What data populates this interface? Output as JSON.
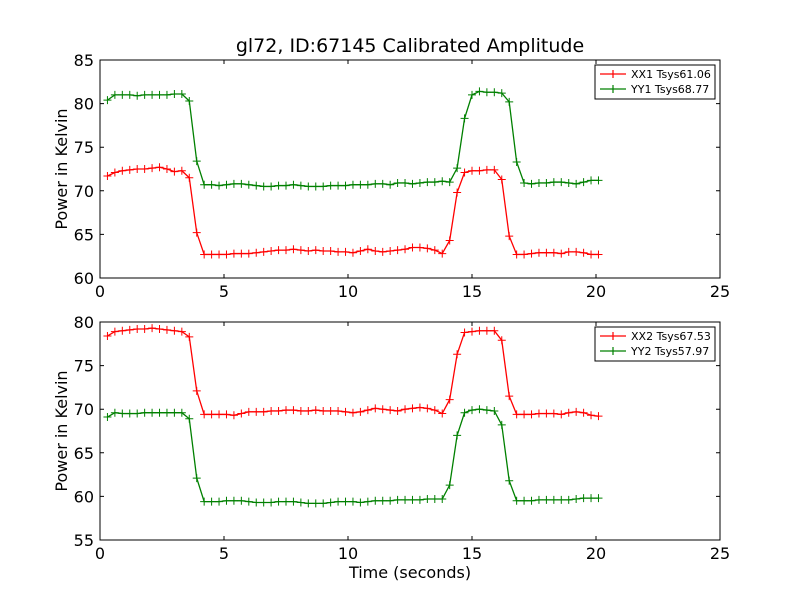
{
  "chart_data": [
    {
      "type": "line",
      "title": "gl72, ID:67145 Calibrated Amplitude",
      "xlabel": "",
      "ylabel": "Power in Kelvin",
      "xlim": [
        0,
        25
      ],
      "ylim": [
        60,
        85
      ],
      "xticks": [
        0,
        5,
        10,
        15,
        20,
        25
      ],
      "yticks": [
        60,
        65,
        70,
        75,
        80,
        85
      ],
      "grid": false,
      "legend_position": "top-right",
      "x": [
        0.3,
        0.6,
        0.9,
        1.2,
        1.5,
        1.8,
        2.1,
        2.4,
        2.7,
        3.0,
        3.3,
        3.6,
        3.9,
        4.2,
        4.5,
        4.8,
        5.1,
        5.4,
        5.7,
        6.0,
        6.3,
        6.6,
        6.9,
        7.2,
        7.5,
        7.8,
        8.1,
        8.4,
        8.7,
        9.0,
        9.3,
        9.6,
        9.9,
        10.2,
        10.5,
        10.8,
        11.1,
        11.4,
        11.7,
        12.0,
        12.3,
        12.6,
        12.9,
        13.2,
        13.5,
        13.8,
        14.1,
        14.4,
        14.7,
        15.0,
        15.3,
        15.6,
        15.9,
        16.2,
        16.5,
        16.8,
        17.1,
        17.4,
        17.7,
        18.0,
        18.3,
        18.6,
        18.9,
        19.2,
        19.5,
        19.8,
        20.1
      ],
      "series": [
        {
          "name": "XX1 Tsys61.06",
          "color": "#ff0000",
          "values": [
            71.7,
            72.1,
            72.3,
            72.4,
            72.5,
            72.5,
            72.6,
            72.7,
            72.5,
            72.2,
            72.3,
            71.5,
            65.2,
            62.7,
            62.7,
            62.7,
            62.7,
            62.8,
            62.8,
            62.8,
            62.9,
            63.0,
            63.1,
            63.2,
            63.2,
            63.3,
            63.2,
            63.1,
            63.2,
            63.1,
            63.1,
            63.0,
            63.0,
            62.9,
            63.1,
            63.3,
            63.1,
            63.0,
            63.1,
            63.2,
            63.3,
            63.5,
            63.5,
            63.4,
            63.2,
            62.8,
            64.3,
            69.8,
            72.1,
            72.3,
            72.3,
            72.4,
            72.4,
            71.3,
            64.8,
            62.7,
            62.7,
            62.8,
            62.9,
            62.9,
            62.9,
            62.8,
            63.0,
            63.0,
            62.9,
            62.7,
            62.7
          ]
        },
        {
          "name": "YY1 Tsys68.77",
          "color": "#008000",
          "values": [
            80.4,
            81.0,
            81.0,
            81.0,
            80.9,
            81.0,
            81.0,
            81.0,
            81.0,
            81.1,
            81.1,
            80.3,
            73.4,
            70.7,
            70.7,
            70.6,
            70.7,
            70.8,
            70.8,
            70.7,
            70.6,
            70.5,
            70.5,
            70.6,
            70.6,
            70.7,
            70.6,
            70.5,
            70.5,
            70.5,
            70.6,
            70.6,
            70.6,
            70.7,
            70.7,
            70.7,
            70.8,
            70.8,
            70.7,
            70.9,
            70.9,
            70.8,
            70.9,
            71.0,
            71.0,
            71.1,
            71.0,
            72.6,
            78.3,
            81.0,
            81.4,
            81.3,
            81.3,
            81.2,
            80.2,
            73.3,
            70.9,
            70.8,
            70.9,
            70.9,
            71.0,
            71.0,
            70.9,
            70.8,
            71.0,
            71.2,
            71.2
          ]
        }
      ]
    },
    {
      "type": "line",
      "title": "",
      "xlabel": "Time (seconds)",
      "ylabel": "Power in Kelvin",
      "xlim": [
        0,
        25
      ],
      "ylim": [
        55,
        80
      ],
      "xticks": [
        0,
        5,
        10,
        15,
        20,
        25
      ],
      "yticks": [
        55,
        60,
        65,
        70,
        75,
        80
      ],
      "grid": false,
      "legend_position": "top-right",
      "x": [
        0.3,
        0.6,
        0.9,
        1.2,
        1.5,
        1.8,
        2.1,
        2.4,
        2.7,
        3.0,
        3.3,
        3.6,
        3.9,
        4.2,
        4.5,
        4.8,
        5.1,
        5.4,
        5.7,
        6.0,
        6.3,
        6.6,
        6.9,
        7.2,
        7.5,
        7.8,
        8.1,
        8.4,
        8.7,
        9.0,
        9.3,
        9.6,
        9.9,
        10.2,
        10.5,
        10.8,
        11.1,
        11.4,
        11.7,
        12.0,
        12.3,
        12.6,
        12.9,
        13.2,
        13.5,
        13.8,
        14.1,
        14.4,
        14.7,
        15.0,
        15.3,
        15.6,
        15.9,
        16.2,
        16.5,
        16.8,
        17.1,
        17.4,
        17.7,
        18.0,
        18.3,
        18.6,
        18.9,
        19.2,
        19.5,
        19.8,
        20.1
      ],
      "series": [
        {
          "name": "XX2 Tsys67.53",
          "color": "#ff0000",
          "values": [
            78.4,
            78.9,
            79.0,
            79.1,
            79.2,
            79.2,
            79.3,
            79.2,
            79.1,
            79.0,
            78.9,
            78.3,
            72.1,
            69.4,
            69.4,
            69.4,
            69.4,
            69.3,
            69.5,
            69.7,
            69.7,
            69.7,
            69.8,
            69.8,
            69.9,
            69.9,
            69.8,
            69.8,
            69.9,
            69.8,
            69.8,
            69.8,
            69.7,
            69.6,
            69.7,
            69.9,
            70.1,
            70.0,
            69.9,
            69.8,
            70.0,
            70.1,
            70.2,
            70.1,
            69.9,
            69.5,
            71.1,
            76.3,
            78.8,
            78.9,
            79.0,
            79.0,
            79.0,
            77.9,
            71.5,
            69.4,
            69.4,
            69.4,
            69.5,
            69.5,
            69.5,
            69.4,
            69.6,
            69.7,
            69.6,
            69.3,
            69.2
          ]
        },
        {
          "name": "YY2 Tsys57.97",
          "color": "#008000",
          "values": [
            69.1,
            69.6,
            69.5,
            69.5,
            69.5,
            69.6,
            69.6,
            69.6,
            69.6,
            69.6,
            69.6,
            68.9,
            62.1,
            59.4,
            59.4,
            59.4,
            59.5,
            59.5,
            59.5,
            59.4,
            59.3,
            59.3,
            59.3,
            59.4,
            59.4,
            59.4,
            59.3,
            59.2,
            59.2,
            59.2,
            59.3,
            59.4,
            59.4,
            59.4,
            59.3,
            59.4,
            59.5,
            59.5,
            59.5,
            59.6,
            59.6,
            59.6,
            59.6,
            59.7,
            59.7,
            59.7,
            61.3,
            67.0,
            69.6,
            69.9,
            70.0,
            69.9,
            69.8,
            68.2,
            61.8,
            59.5,
            59.5,
            59.5,
            59.6,
            59.6,
            59.6,
            59.6,
            59.6,
            59.7,
            59.8,
            59.8,
            59.8
          ]
        }
      ]
    }
  ]
}
